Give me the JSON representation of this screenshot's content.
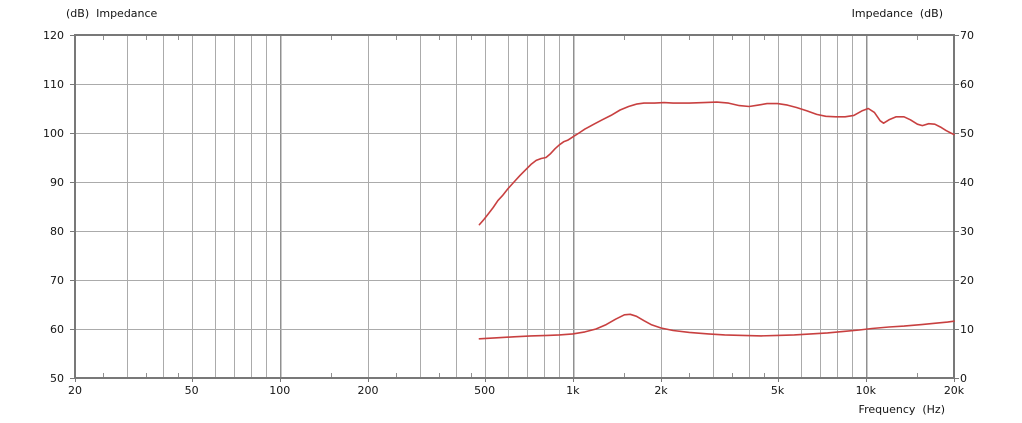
{
  "chart_data": {
    "type": "line",
    "title_left": "(dB)  Impedance",
    "title_right": "Impedance  (dB)",
    "xlabel": "Frequency  (Hz)",
    "x_scale": "log",
    "xlim": [
      20,
      20000
    ],
    "x_tick_labels": [
      {
        "v": 20,
        "label": "20"
      },
      {
        "v": 50,
        "label": "50"
      },
      {
        "v": 100,
        "label": "100"
      },
      {
        "v": 200,
        "label": "200"
      },
      {
        "v": 500,
        "label": "500"
      },
      {
        "v": 1000,
        "label": "1k"
      },
      {
        "v": 2000,
        "label": "2k"
      },
      {
        "v": 5000,
        "label": "5k"
      },
      {
        "v": 10000,
        "label": "10k"
      },
      {
        "v": 20000,
        "label": "20k"
      }
    ],
    "x_gridlines": [
      30,
      40,
      50,
      60,
      70,
      80,
      90,
      100,
      200,
      300,
      400,
      500,
      600,
      700,
      800,
      900,
      1000,
      2000,
      3000,
      4000,
      5000,
      6000,
      7000,
      8000,
      9000,
      10000
    ],
    "x_minor_ticks": [
      25,
      35,
      45,
      150,
      250,
      350,
      450,
      1500,
      2500,
      3500,
      4500,
      15000
    ],
    "left_axis": {
      "lim": [
        50,
        120
      ],
      "ticks": [
        120,
        110,
        100,
        90,
        80,
        70,
        60,
        50
      ]
    },
    "right_axis": {
      "lim": [
        0,
        70
      ],
      "ticks": [
        70,
        60,
        50,
        40,
        30,
        20,
        10,
        0
      ]
    },
    "grid_color": "#ababab",
    "decade_grid_color": "#909090",
    "border_color": "#787878",
    "series": [
      {
        "name": "spl-response",
        "axis": "left",
        "color": "#c84040",
        "points": [
          [
            480,
            81.3
          ],
          [
            495,
            82.2
          ],
          [
            515,
            83.5
          ],
          [
            535,
            84.8
          ],
          [
            555,
            86.2
          ],
          [
            575,
            87.2
          ],
          [
            600,
            88.6
          ],
          [
            630,
            90.0
          ],
          [
            660,
            91.3
          ],
          [
            690,
            92.5
          ],
          [
            720,
            93.6
          ],
          [
            750,
            94.4
          ],
          [
            780,
            94.8
          ],
          [
            810,
            95.0
          ],
          [
            840,
            95.8
          ],
          [
            870,
            96.8
          ],
          [
            900,
            97.6
          ],
          [
            930,
            98.2
          ],
          [
            960,
            98.5
          ],
          [
            1000,
            99.2
          ],
          [
            1050,
            100.0
          ],
          [
            1100,
            100.8
          ],
          [
            1180,
            101.8
          ],
          [
            1260,
            102.7
          ],
          [
            1350,
            103.6
          ],
          [
            1450,
            104.7
          ],
          [
            1550,
            105.4
          ],
          [
            1650,
            105.9
          ],
          [
            1750,
            106.1
          ],
          [
            1900,
            106.1
          ],
          [
            2050,
            106.2
          ],
          [
            2200,
            106.1
          ],
          [
            2500,
            106.1
          ],
          [
            2800,
            106.2
          ],
          [
            3100,
            106.3
          ],
          [
            3400,
            106.1
          ],
          [
            3700,
            105.6
          ],
          [
            4000,
            105.4
          ],
          [
            4300,
            105.7
          ],
          [
            4600,
            106.0
          ],
          [
            5000,
            106.0
          ],
          [
            5400,
            105.7
          ],
          [
            5800,
            105.2
          ],
          [
            6300,
            104.5
          ],
          [
            6800,
            103.8
          ],
          [
            7300,
            103.4
          ],
          [
            7900,
            103.3
          ],
          [
            8500,
            103.3
          ],
          [
            9100,
            103.6
          ],
          [
            9700,
            104.5
          ],
          [
            10200,
            105.0
          ],
          [
            10700,
            104.2
          ],
          [
            11200,
            102.5
          ],
          [
            11500,
            102.0
          ],
          [
            12000,
            102.7
          ],
          [
            12700,
            103.3
          ],
          [
            13500,
            103.3
          ],
          [
            14200,
            102.7
          ],
          [
            15000,
            101.8
          ],
          [
            15600,
            101.5
          ],
          [
            16400,
            101.9
          ],
          [
            17200,
            101.8
          ],
          [
            18000,
            101.2
          ],
          [
            18800,
            100.5
          ],
          [
            19500,
            100.0
          ],
          [
            20000,
            99.7
          ]
        ]
      },
      {
        "name": "impedance",
        "axis": "right",
        "color": "#c84040",
        "points": [
          [
            480,
            8.0
          ],
          [
            550,
            8.2
          ],
          [
            630,
            8.4
          ],
          [
            720,
            8.6
          ],
          [
            820,
            8.7
          ],
          [
            900,
            8.8
          ],
          [
            1000,
            9.0
          ],
          [
            1100,
            9.4
          ],
          [
            1200,
            10.0
          ],
          [
            1300,
            10.9
          ],
          [
            1400,
            12.0
          ],
          [
            1500,
            12.9
          ],
          [
            1570,
            13.0
          ],
          [
            1650,
            12.6
          ],
          [
            1750,
            11.7
          ],
          [
            1850,
            10.9
          ],
          [
            2000,
            10.2
          ],
          [
            2200,
            9.7
          ],
          [
            2500,
            9.3
          ],
          [
            2900,
            9.0
          ],
          [
            3300,
            8.8
          ],
          [
            3800,
            8.7
          ],
          [
            4400,
            8.6
          ],
          [
            5000,
            8.7
          ],
          [
            5700,
            8.8
          ],
          [
            6500,
            9.0
          ],
          [
            7400,
            9.2
          ],
          [
            8400,
            9.5
          ],
          [
            9500,
            9.8
          ],
          [
            10500,
            10.1
          ],
          [
            12000,
            10.4
          ],
          [
            13500,
            10.6
          ],
          [
            15500,
            10.9
          ],
          [
            17500,
            11.2
          ],
          [
            19000,
            11.4
          ],
          [
            20000,
            11.6
          ]
        ]
      }
    ]
  }
}
